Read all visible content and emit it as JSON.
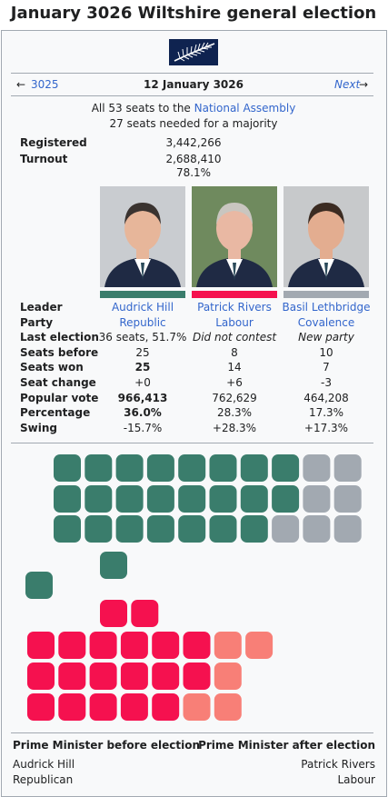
{
  "title": "January 3026 Wiltshire general election",
  "nav": {
    "prev_arrow": "←",
    "prev": "3025",
    "date": "12 January 3026",
    "next": "Next",
    "next_arrow": "→"
  },
  "summary": {
    "seats_prefix": "All 53 seats to the",
    "seats_link": "National Assembly",
    "majority": "27 seats needed for a majority"
  },
  "stats": [
    {
      "label": "Registered",
      "value": "3,442,266"
    },
    {
      "label": "Turnout",
      "value": "2,688,410",
      "percent": "78.1%"
    }
  ],
  "parties": [
    {
      "color": "#3a7d6c"
    },
    {
      "color": "#f5114f"
    },
    {
      "color": "#a2a9b1"
    }
  ],
  "table": {
    "rows": [
      {
        "label": "Leader",
        "cells": [
          "Audrick Hill",
          "Patrick Rivers",
          "Basil Lethbridge"
        ]
      },
      {
        "label": "Party",
        "cells": [
          "Republic",
          "Labour",
          "Covalence"
        ]
      },
      {
        "label": "Last election",
        "cells": [
          "36 seats, 51.7%",
          "Did not contest",
          "New party"
        ]
      },
      {
        "label": "Seats before",
        "cells": [
          "25",
          "8",
          "10"
        ]
      },
      {
        "label": "Seats won",
        "cells": [
          "25",
          "14",
          "7"
        ]
      },
      {
        "label": "Seat change",
        "cells": [
          "+0",
          "+6",
          "-3"
        ]
      },
      {
        "label": "Popular vote",
        "cells": [
          "966,413",
          "762,629",
          "464,208"
        ]
      },
      {
        "label": "Percentage",
        "cells": [
          "36.0%",
          "28.3%",
          "17.3%"
        ]
      },
      {
        "label": "Swing",
        "cells": [
          "-15.7%",
          "+28.3%",
          "+17.3%"
        ]
      }
    ]
  },
  "pm": {
    "before_heading": "Prime Minister before election",
    "after_heading": "Prime Minister after election",
    "before_name": "Audrick Hill",
    "before_party": "Republican",
    "after_name": "Patrick Rivers",
    "after_party": "Labour"
  }
}
